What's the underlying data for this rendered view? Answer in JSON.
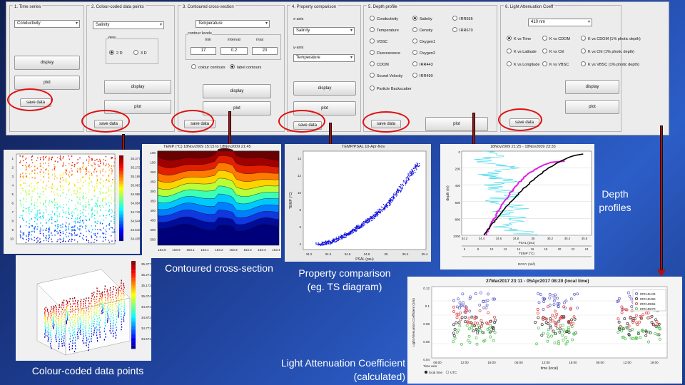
{
  "panels": {
    "time_series": {
      "title": "1. Time series",
      "variable": "Conductivity",
      "display": "display",
      "plot": "plot",
      "save": "save data"
    },
    "colour_coded": {
      "title": "2. Colour-coded data points",
      "variable": "Salinity",
      "view_label": "view",
      "view_2d": "2 D",
      "view_3d": "3 D",
      "display": "display",
      "plot": "plot",
      "save": "save data"
    },
    "contoured": {
      "title": "3. Contoured cross-section",
      "variable": "Temperature",
      "contour_levels": "contour levels",
      "min_label": "min",
      "interval_label": "interval",
      "max_label": "max",
      "min": "17",
      "interval": "0.2",
      "max": "20",
      "colour_contours": "colour contours",
      "label_contours": "label contours",
      "display": "display",
      "plot": "plot",
      "save": "save data"
    },
    "property": {
      "title": "4. Property comparison",
      "x_label": "x-axis",
      "x_value": "Salinity",
      "y_label": "y-axis",
      "y_value": "Temperature",
      "display": "display",
      "plot": "plot",
      "save": "save data"
    },
    "depth": {
      "title": "5. Depth profile",
      "options": [
        "Conductivity",
        "Salinity",
        "IRR555",
        "Temperature",
        "Density",
        "IRR670",
        "VDSC",
        "Oxygen1",
        "",
        "Fluorescence",
        "Oxygen2",
        "",
        "CDOM",
        "IRR443",
        "",
        "Sound Velocity",
        "IRR490",
        ""
      ],
      "particle": "Particle Backscatter",
      "plot": "plot",
      "save": "save data"
    },
    "light": {
      "title": "6. Light Attenuation Coeff",
      "wavelength": "410 nm",
      "options": [
        "K vs Time",
        "K vs CDOM",
        "K vs CDOM (1% photic depth)",
        "K vs Latitude",
        "K vs Chl",
        "K vs Chl (1% photic depth)",
        "K vs Longitude",
        "K vs VBSC",
        "K vs VBSC (1% photic depth)"
      ],
      "display": "display",
      "plot": "plot",
      "save": "save data"
    }
  },
  "captions": {
    "depth_profiles": "Depth profiles",
    "contoured": "Contoured cross-section",
    "property": "Property comparison (eg. TS diagram)",
    "colour_coded": "Colour-coded data points",
    "light": "Light Attenuation Coefficient (calculated)"
  },
  "figures": {
    "contour": {
      "title": "TEMP (°C) 18Nov2009 15:15 to 18Nov2009 21:45",
      "yticks": [
        "100",
        "150",
        "200",
        "250",
        "300",
        "350",
        "400",
        "450",
        "500",
        "550"
      ],
      "xticks": [
        "153.8",
        "153.9",
        "153.1",
        "153.1",
        "153.2",
        "153.3",
        "153.3",
        "153.3",
        "153.4"
      ]
    },
    "ts": {
      "title": "TEMP/PSAL 10-Apr-Nov",
      "xlabel": "PSAL (psu)",
      "ylabel": "TEMP (°C)",
      "xticks": [
        "34.2",
        "34.4",
        "34.6",
        "34.8",
        "35",
        "35.2",
        "35.4"
      ],
      "yticks": [
        "14",
        "12",
        "10",
        "8",
        "6",
        "4"
      ]
    },
    "depth_fig": {
      "title": "18Nov2009 21:25 - 18Nov2009 23:33",
      "ylabel": "depth (m)",
      "xlabel_sal": "PSAL (psu)",
      "xlabel_temp": "TEMP (°C)",
      "xlabel_bot": "DOXY (ml/l)",
      "yticks": [
        "0",
        "200",
        "400",
        "600",
        "800",
        "1000"
      ],
      "xticks_top": [
        "34.2",
        "34.4",
        "34.6",
        "34.8",
        "35",
        "35.2",
        "35.4",
        "35.6"
      ],
      "xticks_bot": [
        "6",
        "8",
        "10",
        "12",
        "14",
        "16",
        "18",
        "20",
        "22",
        "24"
      ]
    },
    "light_fig": {
      "title": "27Mar2017 23:11 - 05Apr2017 08:20 (local time)",
      "ylabel": "Light Attenuation Coefficient (1/m)",
      "xlabel": "time (local)",
      "legend": [
        "IRRAD443",
        "IRRAD490",
        "IRRAD555",
        "IRRAD670"
      ],
      "yticks": [
        "0.12",
        "0.1",
        "0.08",
        "0.06",
        "0.04"
      ],
      "xticks": [
        "06:00",
        "12:00",
        "18:00",
        "06:00",
        "12:00",
        "18:00",
        "06:00",
        "12:00",
        "18:00"
      ],
      "time_axis_label": "Time axis",
      "time_axis_opt1": "local time",
      "time_axis_opt2": "UTC"
    },
    "scatter": {
      "colorbar": [
        "35.377",
        "35.272",
        "35.168",
        "35.063",
        "34.958",
        "34.854",
        "34.749",
        "34.644",
        "34.540",
        "34.435"
      ]
    },
    "scatter3d": {
      "colorbar": [
        "35.377",
        "35.271",
        "35.172",
        "35.074",
        "34.974",
        "34.872",
        "34.771",
        "34.671"
      ]
    }
  },
  "colors": {
    "arrow": "#b40d0d",
    "ring": "#e01010"
  }
}
